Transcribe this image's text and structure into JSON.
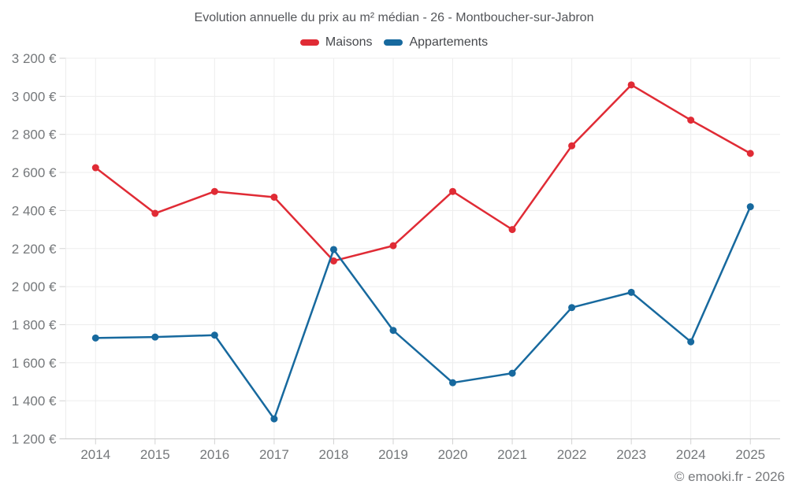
{
  "header": {
    "title": "Evolution annuelle du prix au m² médian - 26 - Montboucher-sur-Jabron"
  },
  "legend": {
    "position": "top",
    "items": [
      {
        "label": "Maisons",
        "color": "#e02b35"
      },
      {
        "label": "Appartements",
        "color": "#17699e"
      }
    ]
  },
  "chart_data": {
    "type": "line",
    "title": "Evolution annuelle du prix au m² médian - 26 - Montboucher-sur-Jabron",
    "x": [
      "2014",
      "2015",
      "2016",
      "2017",
      "2018",
      "2019",
      "2020",
      "2021",
      "2022",
      "2023",
      "2024",
      "2025"
    ],
    "series": [
      {
        "name": "Maisons",
        "color": "#e02b35",
        "values": [
          2625,
          2385,
          2500,
          2470,
          2135,
          2215,
          2500,
          2300,
          2740,
          3060,
          2875,
          2700
        ]
      },
      {
        "name": "Appartements",
        "color": "#17699e",
        "values": [
          1730,
          1735,
          1745,
          1305,
          2195,
          1770,
          1495,
          1545,
          1890,
          1970,
          1710,
          2420
        ]
      }
    ],
    "xlabel": "",
    "ylabel": "",
    "ylim": [
      1200,
      3200
    ],
    "y_tick_step": 200,
    "y_ticks": [
      3200,
      3000,
      2800,
      2600,
      2400,
      2200,
      2000,
      1800,
      1600,
      1400,
      1200
    ],
    "y_tick_labels": [
      "3 200 €",
      "3 000 €",
      "2 800 €",
      "2 600 €",
      "2 400 €",
      "2 200 €",
      "2 000 €",
      "1 800 €",
      "1 600 €",
      "1 400 €",
      "1 200 €"
    ],
    "grid": true,
    "legend_position": "top",
    "marker": "circle",
    "currency": "€"
  },
  "footer": {
    "credit": "© emooki.fr - 2026"
  }
}
